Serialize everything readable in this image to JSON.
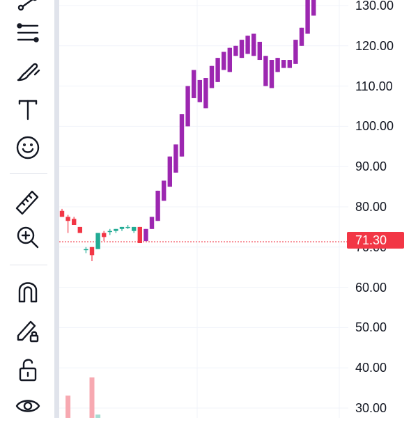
{
  "toolbar": {
    "tools": [
      {
        "id": "trend-line-tool",
        "icon": "trend-line-icon"
      },
      {
        "id": "fib-tool",
        "icon": "fib-retracement-icon"
      },
      {
        "id": "brush-tool",
        "icon": "brush-icon"
      },
      {
        "id": "text-tool",
        "icon": "text-icon"
      },
      {
        "id": "emoji-tool",
        "icon": "smiley-icon"
      },
      {
        "id": "measure-tool",
        "icon": "ruler-icon"
      },
      {
        "id": "zoom-tool",
        "icon": "zoom-in-icon"
      },
      {
        "id": "magnet-tool",
        "icon": "magnet-icon"
      },
      {
        "id": "lock-drawings-tool",
        "icon": "pencil-lock-icon"
      },
      {
        "id": "lock-all-tool",
        "icon": "unlock-icon"
      },
      {
        "id": "hide-tool",
        "icon": "eye-icon"
      }
    ],
    "text_tool_glyph": "T"
  },
  "price_axis": {
    "ticks": [
      "130.00",
      "120.00",
      "110.00",
      "100.00",
      "90.00",
      "80.00",
      "70.00",
      "60.00",
      "50.00",
      "40.00",
      "30.00"
    ],
    "current_price": "71.30"
  },
  "colors": {
    "up": "#22ab94",
    "down": "#f23645",
    "highlight": "#9c27b0",
    "volume_down": "#f7a9b1",
    "volume_up": "#a6dcd2",
    "grid": "#f0f3fa",
    "price_line": "#f23645"
  },
  "chart_data": {
    "type": "candlestick",
    "ylim": [
      27,
      133
    ],
    "candles": [
      {
        "o": 79,
        "h": 79.5,
        "l": 77.5,
        "c": 77.5,
        "color": "down"
      },
      {
        "o": 77.5,
        "h": 78,
        "l": 73.5,
        "c": 76.5,
        "color": "down"
      },
      {
        "o": 77,
        "h": 77.5,
        "l": 75.5,
        "c": 75.5,
        "color": "down"
      },
      {
        "o": 75,
        "h": 75,
        "l": 73.5,
        "c": 73.5,
        "color": "down"
      },
      {
        "o": 69.5,
        "h": 70,
        "l": 68.5,
        "c": 69.5,
        "color": "up"
      },
      {
        "o": 70,
        "h": 70,
        "l": 66.5,
        "c": 68,
        "color": "down"
      },
      {
        "o": 69.5,
        "h": 73.5,
        "l": 69.5,
        "c": 73.5,
        "color": "up"
      },
      {
        "o": 72.5,
        "h": 74,
        "l": 71.5,
        "c": 73.5,
        "color": "down"
      },
      {
        "o": 74,
        "h": 74.5,
        "l": 73,
        "c": 74,
        "color": "up"
      },
      {
        "o": 74,
        "h": 74.5,
        "l": 73.5,
        "c": 74.5,
        "color": "up"
      },
      {
        "o": 74.5,
        "h": 75,
        "l": 74,
        "c": 75,
        "color": "up"
      },
      {
        "o": 75,
        "h": 75.5,
        "l": 74.5,
        "c": 75,
        "color": "up"
      },
      {
        "o": 75,
        "h": 75,
        "l": 73.5,
        "c": 74,
        "color": "up"
      },
      {
        "o": 75,
        "h": 75,
        "l": 71,
        "c": 71,
        "color": "down"
      },
      {
        "o": 71.5,
        "h": 74.5,
        "l": 71.5,
        "c": 74.5,
        "color": "highlight"
      },
      {
        "o": 74.5,
        "h": 77.5,
        "l": 74.5,
        "c": 77.5,
        "color": "highlight"
      },
      {
        "o": 76.5,
        "h": 84,
        "l": 76.5,
        "c": 84,
        "color": "highlight"
      },
      {
        "o": 81.5,
        "h": 86.5,
        "l": 81.5,
        "c": 86.5,
        "color": "highlight"
      },
      {
        "o": 85,
        "h": 92.5,
        "l": 85,
        "c": 92.5,
        "color": "highlight"
      },
      {
        "o": 88.5,
        "h": 95.5,
        "l": 88.5,
        "c": 95.5,
        "color": "highlight"
      },
      {
        "o": 92.5,
        "h": 103,
        "l": 92.5,
        "c": 103,
        "color": "highlight"
      },
      {
        "o": 100,
        "h": 110,
        "l": 100,
        "c": 110,
        "color": "highlight"
      },
      {
        "o": 107,
        "h": 114,
        "l": 107,
        "c": 114,
        "color": "highlight"
      },
      {
        "o": 106,
        "h": 111.5,
        "l": 106,
        "c": 111.5,
        "color": "highlight"
      },
      {
        "o": 104.5,
        "h": 112,
        "l": 104.5,
        "c": 112,
        "color": "highlight"
      },
      {
        "o": 109.5,
        "h": 115,
        "l": 109.5,
        "c": 115,
        "color": "highlight"
      },
      {
        "o": 111,
        "h": 117,
        "l": 111,
        "c": 117,
        "color": "highlight"
      },
      {
        "o": 114,
        "h": 118.5,
        "l": 114,
        "c": 118.5,
        "color": "highlight"
      },
      {
        "o": 113.5,
        "h": 119.5,
        "l": 113.5,
        "c": 119.5,
        "color": "highlight"
      },
      {
        "o": 117.5,
        "h": 120,
        "l": 117.5,
        "c": 120,
        "color": "highlight"
      },
      {
        "o": 117,
        "h": 121.5,
        "l": 117,
        "c": 121.5,
        "color": "highlight"
      },
      {
        "o": 118,
        "h": 122.5,
        "l": 118,
        "c": 122.5,
        "color": "highlight"
      },
      {
        "o": 117.5,
        "h": 123,
        "l": 117.5,
        "c": 123,
        "color": "highlight"
      },
      {
        "o": 116.5,
        "h": 121,
        "l": 116.5,
        "c": 121,
        "color": "highlight"
      },
      {
        "o": 110,
        "h": 117.5,
        "l": 110,
        "c": 117.5,
        "color": "highlight"
      },
      {
        "o": 109.5,
        "h": 116.5,
        "l": 109.5,
        "c": 116.5,
        "color": "highlight"
      },
      {
        "o": 113.5,
        "h": 117,
        "l": 113.5,
        "c": 117,
        "color": "highlight"
      },
      {
        "o": 114.5,
        "h": 116.5,
        "l": 114.5,
        "c": 116.5,
        "color": "highlight"
      },
      {
        "o": 114.5,
        "h": 116.5,
        "l": 114.5,
        "c": 116.5,
        "color": "highlight"
      },
      {
        "o": 115.5,
        "h": 121.5,
        "l": 115.5,
        "c": 121.5,
        "color": "highlight"
      },
      {
        "o": 120,
        "h": 124.5,
        "l": 120,
        "c": 124.5,
        "color": "highlight"
      },
      {
        "o": 123,
        "h": 133,
        "l": 123,
        "c": 133,
        "color": "highlight"
      },
      {
        "o": 127.5,
        "h": 133,
        "l": 127.5,
        "c": 133,
        "color": "highlight"
      }
    ],
    "volume": [
      {
        "index": 1,
        "relative": 0.55,
        "color": "volume_down"
      },
      {
        "index": 5,
        "relative": 1.0,
        "color": "volume_down"
      },
      {
        "index": 6,
        "relative": 0.08,
        "color": "volume_up"
      }
    ],
    "last_price": 71.3
  }
}
